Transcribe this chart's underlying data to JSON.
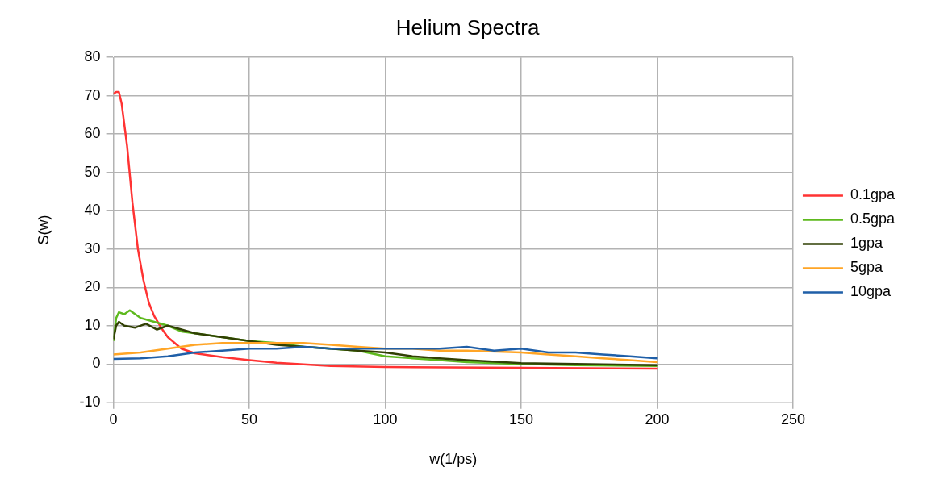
{
  "chart_data": {
    "type": "line",
    "title": "Helium Spectra",
    "xlabel": "w(1/ps)",
    "ylabel": "S(w)",
    "xlim": [
      0,
      250
    ],
    "xticks": [
      0,
      50,
      100,
      150,
      200,
      250
    ],
    "ylim": [
      -10,
      80
    ],
    "yticks": [
      -10,
      0,
      10,
      20,
      30,
      40,
      50,
      60,
      70,
      80
    ],
    "grid": true,
    "legend": "right",
    "marker": "none",
    "line_style": "solid",
    "series": [
      {
        "name": "0.1gpa",
        "color": "#ff3333",
        "x": [
          0,
          1,
          2,
          3,
          5,
          7,
          9,
          11,
          13,
          15,
          18,
          20,
          25,
          30,
          40,
          50,
          60,
          80,
          100,
          150,
          200
        ],
        "values": [
          70.5,
          71,
          71,
          68,
          57,
          42,
          30,
          22,
          16,
          12.5,
          9,
          7,
          4,
          2.8,
          1.8,
          1,
          0.3,
          -0.5,
          -0.8,
          -1,
          -1.2
        ]
      },
      {
        "name": "0.5gpa",
        "color": "#5eb91e",
        "x": [
          0,
          1,
          2,
          4,
          6,
          8,
          10,
          15,
          20,
          25,
          30,
          40,
          50,
          60,
          70,
          80,
          90,
          100,
          110,
          120,
          130,
          150,
          170,
          200
        ],
        "values": [
          6,
          12,
          13.5,
          13,
          14,
          13,
          12,
          11,
          10,
          8.5,
          8,
          7,
          6,
          5.5,
          4.5,
          4,
          3.5,
          2,
          1.5,
          1,
          0.5,
          0,
          -0.3,
          -0.5
        ]
      },
      {
        "name": "1gpa",
        "color": "#314004",
        "x": [
          0,
          1,
          2,
          4,
          8,
          12,
          16,
          20,
          25,
          30,
          40,
          50,
          60,
          70,
          80,
          90,
          100,
          110,
          120,
          130,
          150,
          170,
          200
        ],
        "values": [
          6.5,
          10,
          11,
          10,
          9.5,
          10.5,
          9,
          10,
          9,
          8,
          7,
          6,
          5,
          4.5,
          4,
          3.5,
          3,
          2,
          1.5,
          1,
          0.2,
          0,
          -0.3
        ]
      },
      {
        "name": "5gpa",
        "color": "#ffa526",
        "x": [
          0,
          10,
          20,
          30,
          40,
          50,
          60,
          70,
          80,
          90,
          100,
          110,
          120,
          130,
          150,
          160,
          170,
          180,
          190,
          200
        ],
        "values": [
          2.5,
          3,
          4,
          5,
          5.5,
          5.5,
          5.5,
          5.5,
          5,
          4.5,
          4,
          4,
          3.5,
          3.5,
          3,
          2.5,
          2,
          1.5,
          1,
          0.5
        ]
      },
      {
        "name": "10gpa",
        "color": "#1f5fa8",
        "x": [
          0,
          10,
          20,
          30,
          40,
          50,
          60,
          70,
          80,
          90,
          100,
          110,
          120,
          130,
          140,
          150,
          160,
          170,
          180,
          190,
          200
        ],
        "values": [
          1.3,
          1.5,
          2,
          3,
          3.5,
          4,
          4,
          4.5,
          4,
          4,
          4,
          4,
          4,
          4.5,
          3.5,
          4,
          3,
          3,
          2.5,
          2,
          1.5
        ]
      }
    ]
  }
}
